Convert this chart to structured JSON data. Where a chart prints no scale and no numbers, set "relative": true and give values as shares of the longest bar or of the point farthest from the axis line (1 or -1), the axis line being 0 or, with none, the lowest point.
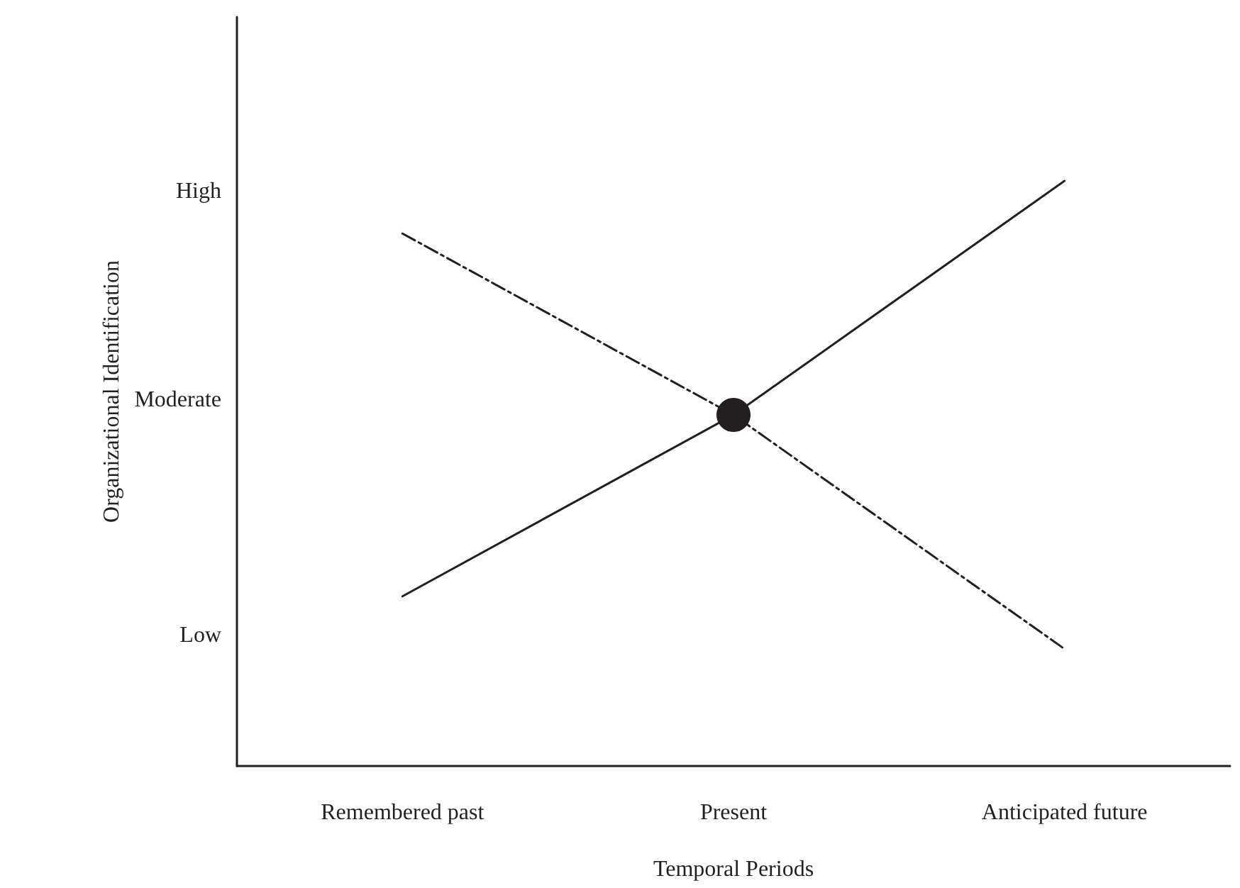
{
  "chart_data": {
    "type": "line",
    "xlabel": "Temporal Periods",
    "ylabel": "Organizational Identification",
    "relative": true,
    "categories": [
      "Remembered past",
      "Present",
      "Anticipated future"
    ],
    "annotations": [
      "High",
      "Moderate",
      "Low"
    ],
    "series": [
      {
        "color": "#231f20",
        "values": [
          0.29,
          0.6,
          1
        ],
        "line_style": "solid",
        "marker": "none"
      },
      {
        "color": "#231f20",
        "values": [
          0.91,
          0.6,
          0.2
        ],
        "line_style": "dashed",
        "marker": "none"
      },
      {
        "type": "scatter",
        "color": "#231f20",
        "x": [
          "Present"
        ],
        "values": [
          0.6
        ],
        "marker": "circle"
      }
    ],
    "grid": false
  }
}
